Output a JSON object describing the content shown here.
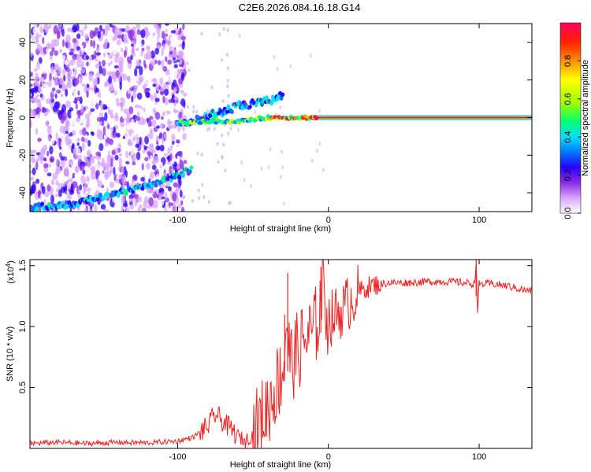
{
  "chart_data": [
    {
      "type": "heatmap",
      "title": "C2E6.2026.084.16.18.G14",
      "xlabel": "Height of straight line (km)",
      "ylabel": "Frequency (Hz)",
      "xlim": [
        -198,
        135
      ],
      "ylim": [
        -50,
        50
      ],
      "xticks": [
        -100,
        0,
        100
      ],
      "xtick_labels": [
        "-100",
        "0",
        "100"
      ],
      "yticks": [
        -40,
        -20,
        0,
        20,
        40
      ],
      "ytick_labels": [
        "-40",
        "-20",
        "0",
        "20",
        "40"
      ],
      "colorbar": {
        "label": "Normalized spectral amplitude",
        "range": [
          0,
          1
        ],
        "ticks": [
          0.0,
          0.2,
          0.4,
          0.6,
          0.8
        ],
        "tick_labels": [
          "0.0",
          "0.2",
          "0.4",
          "0.6",
          "0.8"
        ],
        "colors": [
          "#ffffff",
          "#d9a6ff",
          "#8a2be2",
          "#2a00ff",
          "#0077ff",
          "#00e0ff",
          "#00ff70",
          "#a0ff00",
          "#ffff00",
          "#ff9000",
          "#ff2000",
          "#ff0060"
        ]
      },
      "features": [
        {
          "name": "scattered noise",
          "x_range": [
            -198,
            -95
          ],
          "y_range": [
            -50,
            50
          ],
          "amplitude": 0.15
        },
        {
          "name": "lower branch",
          "x": [
            -198,
            -170,
            -150,
            -130,
            -115,
            -100,
            -90
          ],
          "y": [
            -48,
            -46,
            -42,
            -38,
            -35,
            -31,
            -27
          ],
          "amplitude": 0.35
        },
        {
          "name": "upper branch",
          "x": [
            -100,
            -90,
            -80,
            -70,
            -60,
            -50,
            -40,
            -30
          ],
          "y": [
            -3,
            -2,
            1,
            3,
            6,
            7,
            9,
            12
          ],
          "amplitude": 0.35
        },
        {
          "name": "main band",
          "x": [
            -100,
            -80,
            -60,
            -40,
            -20,
            0,
            50,
            100,
            135
          ],
          "y": [
            -3,
            -2,
            -2,
            0,
            0,
            0,
            0,
            0,
            0
          ],
          "amplitude": 0.9
        }
      ]
    },
    {
      "type": "line",
      "title": "",
      "xlabel": "Height of straight line (km)",
      "ylabel": "SNR (10 * v/v)",
      "scale_label": "(x10",
      "scale_exp": "4",
      "scale_close": ")",
      "xlim": [
        -198,
        135
      ],
      "ylim": [
        0,
        15500
      ],
      "xticks": [
        -100,
        0,
        100
      ],
      "xtick_labels": [
        "-100",
        "0",
        "100"
      ],
      "yticks": [
        5000,
        10000,
        15000
      ],
      "ytick_labels": [
        "0.5",
        "1.0",
        "1.5"
      ],
      "color": "#ee2222",
      "series": [
        {
          "name": "SNR",
          "x": [
            -198,
            -180,
            -160,
            -140,
            -120,
            -100,
            -90,
            -80,
            -75,
            -70,
            -65,
            -60,
            -55,
            -50,
            -45,
            -40,
            -35,
            -30,
            -28,
            -25,
            -20,
            -15,
            -10,
            -6,
            -4,
            0,
            5,
            10,
            15,
            20,
            25,
            30,
            35,
            40,
            50,
            60,
            70,
            80,
            90,
            97,
            98,
            99,
            100,
            110,
            120,
            130,
            135
          ],
          "y": [
            400,
            500,
            400,
            500,
            450,
            600,
            900,
            1800,
            2800,
            2200,
            1600,
            1000,
            600,
            1200,
            2200,
            3500,
            5000,
            6500,
            10500,
            7000,
            8000,
            9000,
            9500,
            11000,
            14000,
            10500,
            11000,
            11500,
            12200,
            12800,
            13200,
            13400,
            13500,
            13600,
            13600,
            13650,
            13700,
            13700,
            13600,
            13500,
            15500,
            11000,
            13500,
            13500,
            13300,
            13000,
            12900
          ]
        }
      ],
      "spikes": [
        {
          "x": -29,
          "y": 11000
        },
        {
          "x": -27,
          "y": 14400
        },
        {
          "x": -5,
          "y": 14900
        },
        {
          "x": 98,
          "y": 15500
        }
      ]
    }
  ]
}
